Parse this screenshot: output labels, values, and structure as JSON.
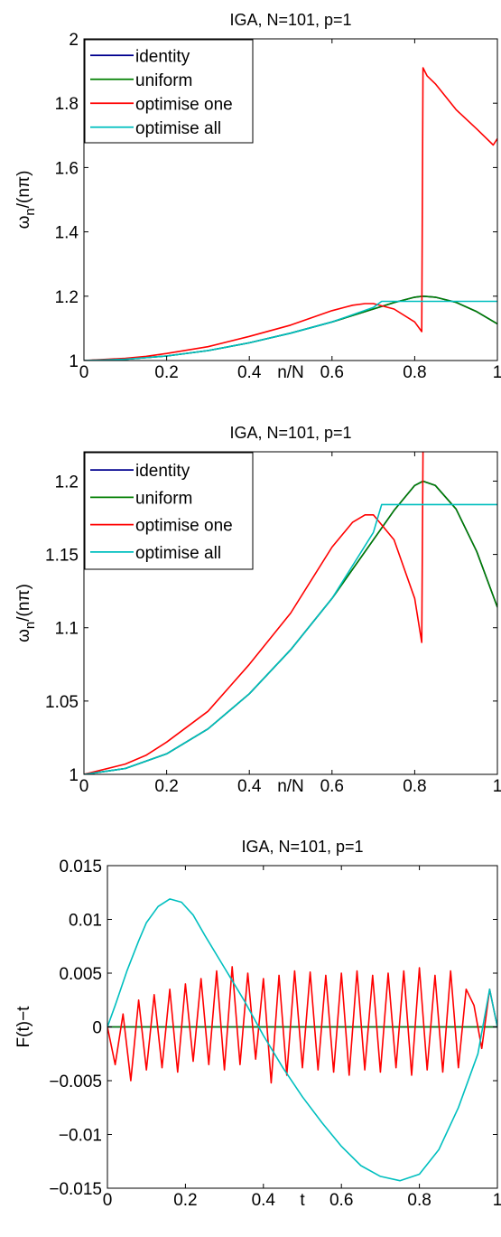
{
  "figure": {
    "colors": {
      "identity": "#00008f",
      "uniform": "#007f00",
      "optimise_one": "#ff0000",
      "optimise_all": "#00bfbf"
    }
  },
  "chart_data": [
    {
      "type": "line",
      "title": "IGA, N=101, p=1",
      "xlabel": "n/N",
      "ylabel": "ω_n/(nπ)",
      "xlim": [
        0,
        1
      ],
      "ylim": [
        1,
        2
      ],
      "xticks": [
        0,
        0.2,
        0.4,
        0.6,
        0.8,
        1
      ],
      "xtick_labels": [
        "0",
        "0.2",
        "0.4",
        "0.6",
        "0.8",
        "1"
      ],
      "yticks": [
        1,
        1.2,
        1.4,
        1.6,
        1.8,
        2
      ],
      "ytick_labels": [
        "1",
        "1.2",
        "1.4",
        "1.6",
        "1.8",
        "2"
      ],
      "legend": {
        "position": "top-left",
        "entries": [
          "identity",
          "uniform",
          "optimise one",
          "optimise all"
        ]
      },
      "series": [
        {
          "name": "identity",
          "color_key": "identity",
          "x": [
            0,
            0.1,
            0.2,
            0.3,
            0.4,
            0.5,
            0.6,
            0.7,
            0.75,
            0.8,
            0.82,
            0.85,
            0.9,
            0.95,
            1
          ],
          "y": [
            1,
            1.004,
            1.014,
            1.031,
            1.055,
            1.085,
            1.12,
            1.16,
            1.18,
            1.197,
            1.2,
            1.197,
            1.181,
            1.152,
            1.114
          ]
        },
        {
          "name": "uniform",
          "color_key": "uniform",
          "x": [
            0,
            0.1,
            0.2,
            0.3,
            0.4,
            0.5,
            0.6,
            0.7,
            0.75,
            0.8,
            0.82,
            0.85,
            0.9,
            0.95,
            1
          ],
          "y": [
            1,
            1.004,
            1.014,
            1.031,
            1.055,
            1.085,
            1.12,
            1.16,
            1.18,
            1.197,
            1.2,
            1.197,
            1.181,
            1.152,
            1.114
          ]
        },
        {
          "name": "optimise one",
          "color_key": "optimise_one",
          "x": [
            0,
            0.1,
            0.15,
            0.2,
            0.3,
            0.4,
            0.5,
            0.6,
            0.65,
            0.68,
            0.7,
            0.75,
            0.8,
            0.817,
            0.82,
            0.83,
            0.85,
            0.9,
            0.95,
            0.99,
            1
          ],
          "y": [
            1,
            1.007,
            1.013,
            1.022,
            1.043,
            1.075,
            1.11,
            1.155,
            1.172,
            1.177,
            1.177,
            1.16,
            1.12,
            1.09,
            1.91,
            1.885,
            1.86,
            1.78,
            1.72,
            1.67,
            1.69
          ]
        },
        {
          "name": "optimise all",
          "color_key": "optimise_all",
          "x": [
            0,
            0.1,
            0.2,
            0.3,
            0.4,
            0.5,
            0.6,
            0.7,
            0.72,
            0.8,
            0.9,
            1
          ],
          "y": [
            1,
            1.004,
            1.014,
            1.031,
            1.055,
            1.085,
            1.12,
            1.165,
            1.184,
            1.184,
            1.184,
            1.184
          ]
        }
      ]
    },
    {
      "type": "line",
      "title": "IGA, N=101, p=1",
      "xlabel": "n/N",
      "ylabel": "ω_n/(nπ)",
      "xlim": [
        0,
        1
      ],
      "ylim": [
        1,
        1.22
      ],
      "xticks": [
        0,
        0.2,
        0.4,
        0.6,
        0.8,
        1
      ],
      "xtick_labels": [
        "0",
        "0.2",
        "0.4",
        "0.6",
        "0.8",
        "1"
      ],
      "yticks": [
        1,
        1.05,
        1.1,
        1.15,
        1.2
      ],
      "ytick_labels": [
        "1",
        "1.05",
        "1.1",
        "1.15",
        "1.2"
      ],
      "legend": {
        "position": "top-left",
        "entries": [
          "identity",
          "uniform",
          "optimise one",
          "optimise all"
        ]
      },
      "series": [
        {
          "name": "identity",
          "color_key": "identity",
          "x": [
            0,
            0.1,
            0.2,
            0.3,
            0.4,
            0.5,
            0.6,
            0.7,
            0.75,
            0.8,
            0.82,
            0.85,
            0.9,
            0.95,
            1
          ],
          "y": [
            1,
            1.004,
            1.014,
            1.031,
            1.055,
            1.085,
            1.12,
            1.16,
            1.18,
            1.197,
            1.2,
            1.197,
            1.181,
            1.152,
            1.114
          ]
        },
        {
          "name": "uniform",
          "color_key": "uniform",
          "x": [
            0,
            0.1,
            0.2,
            0.3,
            0.4,
            0.5,
            0.6,
            0.7,
            0.75,
            0.8,
            0.82,
            0.85,
            0.9,
            0.95,
            1
          ],
          "y": [
            1,
            1.004,
            1.014,
            1.031,
            1.055,
            1.085,
            1.12,
            1.16,
            1.18,
            1.197,
            1.2,
            1.197,
            1.181,
            1.152,
            1.114
          ]
        },
        {
          "name": "optimise one",
          "color_key": "optimise_one",
          "x": [
            0,
            0.1,
            0.15,
            0.2,
            0.3,
            0.4,
            0.5,
            0.6,
            0.65,
            0.68,
            0.7,
            0.75,
            0.8,
            0.817,
            0.82
          ],
          "y": [
            1,
            1.007,
            1.013,
            1.022,
            1.043,
            1.075,
            1.11,
            1.155,
            1.172,
            1.177,
            1.177,
            1.16,
            1.12,
            1.09,
            1.22
          ]
        },
        {
          "name": "optimise all",
          "color_key": "optimise_all",
          "x": [
            0,
            0.1,
            0.2,
            0.3,
            0.4,
            0.5,
            0.6,
            0.7,
            0.72,
            0.8,
            0.9,
            1
          ],
          "y": [
            1,
            1.004,
            1.014,
            1.031,
            1.055,
            1.085,
            1.12,
            1.165,
            1.184,
            1.184,
            1.184,
            1.184
          ]
        }
      ]
    },
    {
      "type": "line",
      "title": "IGA, N=101, p=1",
      "xlabel": "t",
      "ylabel": "F(t)−t",
      "xlim": [
        0,
        1
      ],
      "ylim": [
        -0.015,
        0.015
      ],
      "xticks": [
        0,
        0.2,
        0.4,
        0.6,
        0.8,
        1
      ],
      "xtick_labels": [
        "0",
        "0.2",
        "0.4",
        "0.6",
        "0.8",
        "1"
      ],
      "yticks": [
        -0.015,
        -0.01,
        -0.005,
        0,
        0.005,
        0.01,
        0.015
      ],
      "ytick_labels": [
        "−0.015",
        "−0.01",
        "−0.005",
        "0",
        "0.005",
        "0.01",
        "0.015"
      ],
      "legend": null,
      "series": [
        {
          "name": "identity",
          "color_key": "identity",
          "x": [
            0,
            1
          ],
          "y": [
            0,
            0
          ]
        },
        {
          "name": "uniform",
          "color_key": "uniform",
          "x": [
            0,
            1
          ],
          "y": [
            0,
            0
          ]
        },
        {
          "name": "optimise one",
          "color_key": "optimise_one",
          "x": [
            0,
            0.02,
            0.04,
            0.06,
            0.08,
            0.1,
            0.12,
            0.14,
            0.16,
            0.18,
            0.2,
            0.22,
            0.24,
            0.26,
            0.28,
            0.3,
            0.32,
            0.34,
            0.36,
            0.38,
            0.4,
            0.42,
            0.44,
            0.46,
            0.48,
            0.5,
            0.52,
            0.54,
            0.56,
            0.58,
            0.6,
            0.62,
            0.64,
            0.66,
            0.68,
            0.7,
            0.72,
            0.74,
            0.76,
            0.78,
            0.8,
            0.82,
            0.84,
            0.86,
            0.88,
            0.9,
            0.92,
            0.94,
            0.96,
            0.98,
            1
          ],
          "y": [
            0,
            -0.0035,
            0.0012,
            -0.005,
            0.0025,
            -0.004,
            0.003,
            -0.0038,
            0.0035,
            -0.0042,
            0.004,
            -0.0032,
            0.0045,
            -0.0035,
            0.0052,
            -0.004,
            0.0056,
            -0.0035,
            0.005,
            -0.003,
            0.0045,
            -0.0052,
            0.0048,
            -0.0045,
            0.0052,
            -0.0038,
            0.0051,
            -0.004,
            0.0048,
            -0.0042,
            0.005,
            -0.0045,
            0.0052,
            -0.004,
            0.0048,
            -0.0042,
            0.005,
            -0.0038,
            0.0052,
            -0.0045,
            0.0055,
            -0.004,
            0.0048,
            -0.0042,
            0.0052,
            -0.0038,
            0.0035,
            0.002,
            -0.002,
            0.0035,
            0
          ]
        },
        {
          "name": "optimise all",
          "color_key": "optimise_all",
          "x": [
            0,
            0.02,
            0.05,
            0.08,
            0.1,
            0.13,
            0.16,
            0.19,
            0.22,
            0.25,
            0.3,
            0.35,
            0.4,
            0.45,
            0.5,
            0.55,
            0.6,
            0.65,
            0.7,
            0.75,
            0.8,
            0.85,
            0.9,
            0.95,
            0.98,
            1
          ],
          "y": [
            0,
            0.002,
            0.0052,
            0.008,
            0.0097,
            0.0112,
            0.0119,
            0.0116,
            0.0104,
            0.0085,
            0.0055,
            0.0025,
            -0.0008,
            -0.0038,
            -0.0065,
            -0.0089,
            -0.0111,
            -0.0129,
            -0.0139,
            -0.0143,
            -0.0137,
            -0.0114,
            -0.0075,
            -0.0025,
            0.0035,
            0
          ]
        }
      ]
    }
  ]
}
